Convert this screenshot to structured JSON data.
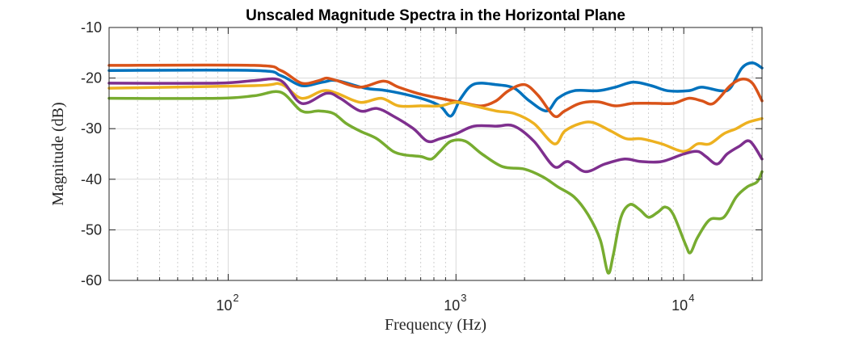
{
  "chart_data": {
    "type": "line",
    "title": "Unscaled Magnitude Spectra in the Horizontal Plane",
    "xlabel": "Frequency (Hz)",
    "ylabel": "Magnitude (dB)",
    "xscale": "log",
    "xlim": [
      30,
      22050
    ],
    "ylim": [
      -60,
      -10
    ],
    "yticks": [
      -10,
      -20,
      -30,
      -40,
      -50,
      -60
    ],
    "xticks": [
      {
        "value": 100,
        "base": "10",
        "exp": "2"
      },
      {
        "value": 1000,
        "base": "10",
        "exp": "3"
      },
      {
        "value": 10000,
        "base": "10",
        "exp": "4"
      }
    ],
    "grid": true,
    "series": [
      {
        "color": "#0072BD",
        "points": [
          [
            30,
            -18.5
          ],
          [
            130,
            -18.5
          ],
          [
            170,
            -19.5
          ],
          [
            210,
            -21.5
          ],
          [
            260,
            -20.8
          ],
          [
            300,
            -20.5
          ],
          [
            400,
            -22.0
          ],
          [
            500,
            -22.5
          ],
          [
            700,
            -24.0
          ],
          [
            850,
            -25.5
          ],
          [
            950,
            -27.5
          ],
          [
            1050,
            -24.0
          ],
          [
            1200,
            -21.2
          ],
          [
            1500,
            -21.3
          ],
          [
            1800,
            -22.0
          ],
          [
            2100,
            -24.5
          ],
          [
            2500,
            -26.5
          ],
          [
            2800,
            -24.0
          ],
          [
            3300,
            -22.5
          ],
          [
            4200,
            -22.5
          ],
          [
            5000,
            -21.8
          ],
          [
            6000,
            -20.8
          ],
          [
            7200,
            -21.5
          ],
          [
            8500,
            -22.5
          ],
          [
            10500,
            -22.5
          ],
          [
            12000,
            -21.8
          ],
          [
            14500,
            -22.5
          ],
          [
            16000,
            -22.0
          ],
          [
            18000,
            -18.0
          ],
          [
            20000,
            -17.0
          ],
          [
            22050,
            -18.0
          ]
        ]
      },
      {
        "color": "#D95319",
        "points": [
          [
            30,
            -17.5
          ],
          [
            130,
            -17.5
          ],
          [
            170,
            -18.5
          ],
          [
            210,
            -21.0
          ],
          [
            250,
            -20.5
          ],
          [
            270,
            -20.0
          ],
          [
            300,
            -20.5
          ],
          [
            380,
            -21.8
          ],
          [
            480,
            -20.6
          ],
          [
            560,
            -21.8
          ],
          [
            700,
            -23.2
          ],
          [
            900,
            -24.2
          ],
          [
            1100,
            -25.0
          ],
          [
            1300,
            -25.5
          ],
          [
            1500,
            -24.5
          ],
          [
            1700,
            -22.5
          ],
          [
            2000,
            -21.3
          ],
          [
            2300,
            -23.5
          ],
          [
            2700,
            -27.5
          ],
          [
            3000,
            -26.5
          ],
          [
            3500,
            -25.0
          ],
          [
            4200,
            -24.7
          ],
          [
            5000,
            -25.5
          ],
          [
            6000,
            -25.0
          ],
          [
            7500,
            -25.0
          ],
          [
            9000,
            -25.0
          ],
          [
            10500,
            -24.0
          ],
          [
            12000,
            -24.5
          ],
          [
            13500,
            -25.0
          ],
          [
            16000,
            -21.5
          ],
          [
            18000,
            -20.2
          ],
          [
            20000,
            -21.0
          ],
          [
            22050,
            -24.5
          ]
        ]
      },
      {
        "color": "#EDB120",
        "points": [
          [
            30,
            -22.0
          ],
          [
            130,
            -21.5
          ],
          [
            170,
            -21.2
          ],
          [
            210,
            -24.0
          ],
          [
            260,
            -22.5
          ],
          [
            300,
            -23.0
          ],
          [
            380,
            -24.8
          ],
          [
            470,
            -24.0
          ],
          [
            560,
            -25.5
          ],
          [
            700,
            -25.5
          ],
          [
            850,
            -25.5
          ],
          [
            1000,
            -24.8
          ],
          [
            1200,
            -25.5
          ],
          [
            1500,
            -26.5
          ],
          [
            1800,
            -27.0
          ],
          [
            2200,
            -29.0
          ],
          [
            2700,
            -33.0
          ],
          [
            3000,
            -30.5
          ],
          [
            3500,
            -29.0
          ],
          [
            4000,
            -28.8
          ],
          [
            4800,
            -30.5
          ],
          [
            5600,
            -32.0
          ],
          [
            6500,
            -32.0
          ],
          [
            8000,
            -33.0
          ],
          [
            10000,
            -34.5
          ],
          [
            11500,
            -33.0
          ],
          [
            13000,
            -33.0
          ],
          [
            15000,
            -31.0
          ],
          [
            17000,
            -30.0
          ],
          [
            19000,
            -28.8
          ],
          [
            22050,
            -28.0
          ]
        ]
      },
      {
        "color": "#7E2F8E",
        "points": [
          [
            30,
            -21.0
          ],
          [
            90,
            -21.0
          ],
          [
            130,
            -20.5
          ],
          [
            170,
            -20.5
          ],
          [
            210,
            -25.0
          ],
          [
            270,
            -23.0
          ],
          [
            310,
            -24.0
          ],
          [
            380,
            -26.5
          ],
          [
            450,
            -26.0
          ],
          [
            530,
            -27.5
          ],
          [
            650,
            -30.0
          ],
          [
            750,
            -32.5
          ],
          [
            850,
            -32.0
          ],
          [
            1000,
            -31.0
          ],
          [
            1200,
            -29.5
          ],
          [
            1500,
            -29.5
          ],
          [
            1800,
            -29.5
          ],
          [
            2200,
            -32.5
          ],
          [
            2700,
            -37.5
          ],
          [
            3100,
            -36.5
          ],
          [
            3700,
            -38.5
          ],
          [
            4500,
            -37.0
          ],
          [
            5500,
            -36.0
          ],
          [
            6500,
            -36.5
          ],
          [
            8000,
            -36.5
          ],
          [
            10000,
            -35.0
          ],
          [
            11500,
            -34.5
          ],
          [
            12500,
            -35.5
          ],
          [
            14000,
            -37.0
          ],
          [
            15500,
            -35.0
          ],
          [
            17500,
            -33.5
          ],
          [
            19500,
            -32.5
          ],
          [
            22050,
            -36.0
          ]
        ]
      },
      {
        "color": "#77AC30",
        "points": [
          [
            30,
            -24.0
          ],
          [
            90,
            -24.0
          ],
          [
            130,
            -23.5
          ],
          [
            170,
            -22.8
          ],
          [
            210,
            -26.5
          ],
          [
            250,
            -26.5
          ],
          [
            290,
            -27.0
          ],
          [
            330,
            -29.0
          ],
          [
            380,
            -30.5
          ],
          [
            450,
            -32.0
          ],
          [
            530,
            -34.5
          ],
          [
            600,
            -35.2
          ],
          [
            700,
            -35.5
          ],
          [
            780,
            -36.0
          ],
          [
            850,
            -34.5
          ],
          [
            950,
            -32.5
          ],
          [
            1100,
            -32.5
          ],
          [
            1300,
            -35.0
          ],
          [
            1600,
            -37.5
          ],
          [
            2000,
            -38.0
          ],
          [
            2400,
            -39.5
          ],
          [
            2800,
            -41.5
          ],
          [
            3300,
            -43.5
          ],
          [
            3800,
            -47.0
          ],
          [
            4300,
            -52.0
          ],
          [
            4650,
            -58.5
          ],
          [
            4900,
            -55.0
          ],
          [
            5300,
            -47.5
          ],
          [
            5800,
            -45.0
          ],
          [
            6400,
            -46.0
          ],
          [
            7000,
            -47.5
          ],
          [
            7700,
            -46.5
          ],
          [
            8300,
            -45.5
          ],
          [
            9000,
            -47.0
          ],
          [
            10200,
            -53.0
          ],
          [
            10700,
            -54.5
          ],
          [
            11500,
            -51.5
          ],
          [
            13000,
            -48.0
          ],
          [
            15000,
            -47.5
          ],
          [
            17000,
            -43.5
          ],
          [
            19000,
            -41.5
          ],
          [
            21000,
            -40.5
          ],
          [
            22050,
            -38.5
          ]
        ]
      }
    ]
  }
}
